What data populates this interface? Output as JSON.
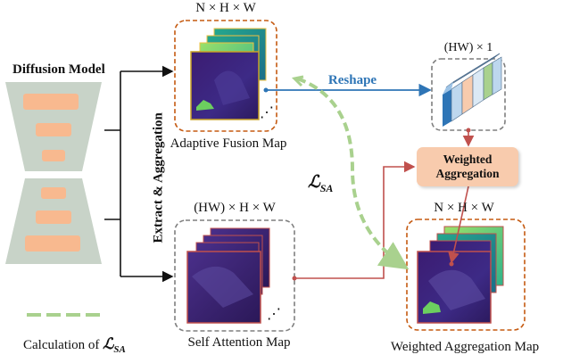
{
  "labels": {
    "nhw_top": "N × H × W",
    "hw1": "(HW) × 1",
    "diffusion_model": "Diffusion Model",
    "reshape": "Reshape",
    "extract_aggregation": "Extract & Aggregation",
    "adaptive_fusion_map": "Adaptive Fusion Map",
    "loss_main": "ℒ",
    "loss_sub": "SA",
    "weighted_line1": "Weighted",
    "weighted_line2": "Aggregation",
    "hw_hw": "(HW) × H × W",
    "nhw_bottom": "N × H × W",
    "self_attention_map": "Self Attention Map",
    "weighted_aggregation_map": "Weighted Aggregation Map",
    "legend_text": "Calculation of ",
    "legend_loss_main": "ℒ",
    "legend_loss_sub": "SA",
    "ellipsis": "⋰"
  },
  "colors": {
    "orange_bar": "#f8b98f",
    "trapezoid": "#c8d3c8",
    "dashed_orange": "#c55a11",
    "dashed_gray": "#7f7f7f",
    "blue_arrow": "#2e75b6",
    "red_arrow": "#c0504d",
    "green_dash": "#a9d18e",
    "weighted_box": "#f8cbad",
    "map_dark": "#3a1f6b",
    "map_teal": "#1f9e89",
    "map_green": "#6ccf5f"
  }
}
